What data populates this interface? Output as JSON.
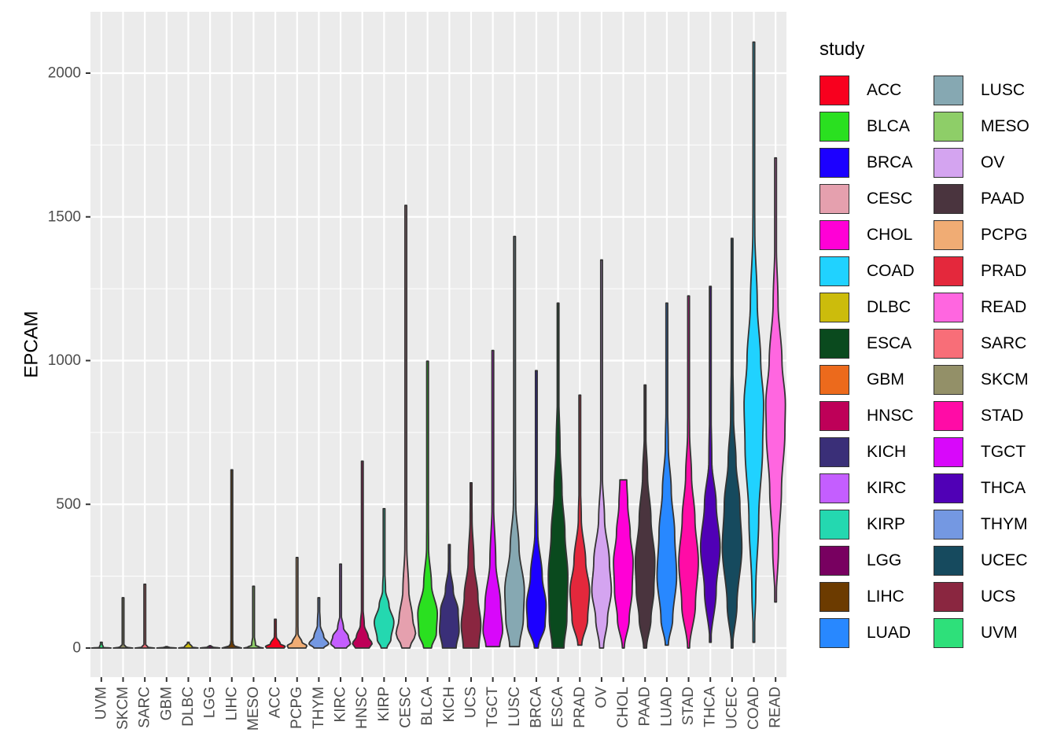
{
  "chart_data": {
    "type": "violin",
    "ylabel": "EPCAM",
    "xlabel": "",
    "ylim": [
      -100,
      2200
    ],
    "y_ticks": [
      0,
      500,
      1000,
      1500,
      2000
    ],
    "grid": true,
    "legend": {
      "title": "study",
      "position": "right",
      "columns": 2
    },
    "categories": [
      "UVM",
      "SKCM",
      "SARC",
      "GBM",
      "DLBC",
      "LGG",
      "LIHC",
      "MESO",
      "ACC",
      "PCPG",
      "THYM",
      "KIRC",
      "HNSC",
      "KIRP",
      "CESC",
      "BLCA",
      "KICH",
      "UCS",
      "TGCT",
      "LUSC",
      "BRCA",
      "ESCA",
      "PRAD",
      "OV",
      "CHOL",
      "PAAD",
      "LUAD",
      "STAD",
      "THCA",
      "UCEC",
      "COAD",
      "READ"
    ],
    "series": [
      {
        "name": "UVM",
        "min": 0,
        "max": 20,
        "profile": [
          [
            0,
            1
          ],
          [
            2,
            0.2
          ],
          [
            20,
            0.02
          ]
        ]
      },
      {
        "name": "SKCM",
        "min": 0,
        "max": 175,
        "profile": [
          [
            0,
            1
          ],
          [
            3,
            0.3
          ],
          [
            15,
            0.05
          ],
          [
            175,
            0.02
          ]
        ]
      },
      {
        "name": "SARC",
        "min": 0,
        "max": 222,
        "profile": [
          [
            0,
            1
          ],
          [
            3,
            0.3
          ],
          [
            15,
            0.05
          ],
          [
            222,
            0.02
          ]
        ]
      },
      {
        "name": "GBM",
        "min": 0,
        "max": 5,
        "profile": [
          [
            0,
            1
          ],
          [
            2,
            0.3
          ],
          [
            5,
            0.03
          ]
        ]
      },
      {
        "name": "DLBC",
        "min": 0,
        "max": 20,
        "profile": [
          [
            0,
            1
          ],
          [
            3,
            0.4
          ],
          [
            20,
            0.03
          ]
        ]
      },
      {
        "name": "LGG",
        "min": 0,
        "max": 8,
        "profile": [
          [
            0,
            1
          ],
          [
            3,
            0.3
          ],
          [
            8,
            0.03
          ]
        ]
      },
      {
        "name": "LIHC",
        "min": 0,
        "max": 620,
        "profile": [
          [
            0,
            1
          ],
          [
            3,
            0.5
          ],
          [
            10,
            0.15
          ],
          [
            40,
            0.05
          ],
          [
            200,
            0.03
          ],
          [
            620,
            0.02
          ]
        ]
      },
      {
        "name": "MESO",
        "min": 0,
        "max": 215,
        "profile": [
          [
            0,
            1
          ],
          [
            3,
            0.6
          ],
          [
            10,
            0.2
          ],
          [
            50,
            0.05
          ],
          [
            215,
            0.02
          ]
        ]
      },
      {
        "name": "ACC",
        "min": 0,
        "max": 100,
        "profile": [
          [
            0,
            0.9
          ],
          [
            5,
            1
          ],
          [
            15,
            0.5
          ],
          [
            40,
            0.1
          ],
          [
            100,
            0.02
          ]
        ]
      },
      {
        "name": "PCPG",
        "min": 0,
        "max": 315,
        "profile": [
          [
            0,
            0.9
          ],
          [
            8,
            1
          ],
          [
            20,
            0.5
          ],
          [
            50,
            0.1
          ],
          [
            150,
            0.03
          ],
          [
            315,
            0.02
          ]
        ]
      },
      {
        "name": "THYM",
        "min": 0,
        "max": 175,
        "profile": [
          [
            0,
            0.5
          ],
          [
            15,
            1
          ],
          [
            40,
            0.5
          ],
          [
            80,
            0.15
          ],
          [
            175,
            0.02
          ]
        ]
      },
      {
        "name": "KIRC",
        "min": 0,
        "max": 292,
        "profile": [
          [
            0,
            0.6
          ],
          [
            15,
            1
          ],
          [
            40,
            0.8
          ],
          [
            70,
            0.3
          ],
          [
            120,
            0.05
          ],
          [
            292,
            0.02
          ]
        ]
      },
      {
        "name": "HNSC",
        "min": 0,
        "max": 650,
        "profile": [
          [
            0,
            0.7
          ],
          [
            15,
            1
          ],
          [
            40,
            0.6
          ],
          [
            80,
            0.2
          ],
          [
            150,
            0.05
          ],
          [
            300,
            0.03
          ],
          [
            650,
            0.02
          ]
        ]
      },
      {
        "name": "KIRP",
        "min": 0,
        "max": 485,
        "profile": [
          [
            0,
            0.3
          ],
          [
            30,
            0.7
          ],
          [
            90,
            1
          ],
          [
            150,
            0.5
          ],
          [
            200,
            0.15
          ],
          [
            300,
            0.04
          ],
          [
            485,
            0.02
          ]
        ]
      },
      {
        "name": "CESC",
        "min": 0,
        "max": 1540,
        "profile": [
          [
            0,
            0.4
          ],
          [
            50,
            1
          ],
          [
            100,
            0.7
          ],
          [
            200,
            0.3
          ],
          [
            350,
            0.1
          ],
          [
            600,
            0.05
          ],
          [
            1000,
            0.03
          ],
          [
            1540,
            0.02
          ]
        ]
      },
      {
        "name": "BLCA",
        "min": 0,
        "max": 998,
        "profile": [
          [
            0,
            0.4
          ],
          [
            50,
            0.9
          ],
          [
            120,
            1
          ],
          [
            220,
            0.4
          ],
          [
            350,
            0.1
          ],
          [
            600,
            0.03
          ],
          [
            998,
            0.02
          ]
        ]
      },
      {
        "name": "KICH",
        "min": 0,
        "max": 360,
        "profile": [
          [
            0,
            0.7
          ],
          [
            60,
            1
          ],
          [
            130,
            0.9
          ],
          [
            200,
            0.4
          ],
          [
            280,
            0.1
          ],
          [
            360,
            0.02
          ]
        ]
      },
      {
        "name": "UCS",
        "min": 0,
        "max": 575,
        "profile": [
          [
            0,
            0.8
          ],
          [
            80,
            1
          ],
          [
            180,
            0.7
          ],
          [
            300,
            0.3
          ],
          [
            450,
            0.1
          ],
          [
            575,
            0.05
          ]
        ]
      },
      {
        "name": "TGCT",
        "min": 5,
        "max": 1035,
        "profile": [
          [
            5,
            0.7
          ],
          [
            60,
            1
          ],
          [
            150,
            0.8
          ],
          [
            300,
            0.3
          ],
          [
            500,
            0.08
          ],
          [
            700,
            0.03
          ],
          [
            1035,
            0.02
          ]
        ]
      },
      {
        "name": "LUSC",
        "min": 5,
        "max": 1432,
        "profile": [
          [
            5,
            0.5
          ],
          [
            100,
            0.9
          ],
          [
            200,
            1
          ],
          [
            350,
            0.45
          ],
          [
            500,
            0.12
          ],
          [
            800,
            0.04
          ],
          [
            1432,
            0.02
          ]
        ]
      },
      {
        "name": "BRCA",
        "min": 0,
        "max": 965,
        "profile": [
          [
            0,
            0.2
          ],
          [
            80,
            0.9
          ],
          [
            150,
            1
          ],
          [
            250,
            0.6
          ],
          [
            400,
            0.15
          ],
          [
            600,
            0.04
          ],
          [
            965,
            0.02
          ]
        ]
      },
      {
        "name": "ESCA",
        "min": 0,
        "max": 1200,
        "profile": [
          [
            0,
            0.6
          ],
          [
            100,
            0.9
          ],
          [
            250,
            1
          ],
          [
            400,
            0.7
          ],
          [
            550,
            0.4
          ],
          [
            700,
            0.2
          ],
          [
            900,
            0.06
          ],
          [
            1200,
            0.02
          ]
        ]
      },
      {
        "name": "PRAD",
        "min": 10,
        "max": 880,
        "profile": [
          [
            10,
            0.2
          ],
          [
            100,
            0.8
          ],
          [
            200,
            1
          ],
          [
            300,
            0.6
          ],
          [
            450,
            0.15
          ],
          [
            600,
            0.04
          ],
          [
            880,
            0.02
          ]
        ]
      },
      {
        "name": "OV",
        "min": 0,
        "max": 1350,
        "profile": [
          [
            0,
            0.2
          ],
          [
            100,
            0.6
          ],
          [
            200,
            1
          ],
          [
            300,
            0.8
          ],
          [
            450,
            0.3
          ],
          [
            600,
            0.08
          ],
          [
            900,
            0.03
          ],
          [
            1350,
            0.02
          ]
        ]
      },
      {
        "name": "CHOL",
        "min": 0,
        "max": 585,
        "profile": [
          [
            0,
            0.1
          ],
          [
            100,
            0.6
          ],
          [
            200,
            0.9
          ],
          [
            300,
            1
          ],
          [
            400,
            0.7
          ],
          [
            500,
            0.45
          ],
          [
            585,
            0.35
          ]
        ]
      },
      {
        "name": "PAAD",
        "min": 0,
        "max": 915,
        "profile": [
          [
            0,
            0.15
          ],
          [
            100,
            0.6
          ],
          [
            200,
            0.9
          ],
          [
            300,
            1
          ],
          [
            450,
            0.6
          ],
          [
            600,
            0.25
          ],
          [
            750,
            0.07
          ],
          [
            915,
            0.02
          ]
        ]
      },
      {
        "name": "LUAD",
        "min": 10,
        "max": 1200,
        "profile": [
          [
            10,
            0.15
          ],
          [
            100,
            0.6
          ],
          [
            250,
            1
          ],
          [
            400,
            0.8
          ],
          [
            550,
            0.45
          ],
          [
            700,
            0.15
          ],
          [
            900,
            0.04
          ],
          [
            1200,
            0.02
          ]
        ]
      },
      {
        "name": "STAD",
        "min": 0,
        "max": 1225,
        "profile": [
          [
            0,
            0.1
          ],
          [
            150,
            0.7
          ],
          [
            300,
            1
          ],
          [
            450,
            0.65
          ],
          [
            600,
            0.3
          ],
          [
            750,
            0.1
          ],
          [
            950,
            0.03
          ],
          [
            1225,
            0.02
          ]
        ]
      },
      {
        "name": "THCA",
        "min": 20,
        "max": 1258,
        "profile": [
          [
            20,
            0.05
          ],
          [
            200,
            0.6
          ],
          [
            350,
            1
          ],
          [
            500,
            0.6
          ],
          [
            650,
            0.15
          ],
          [
            900,
            0.03
          ],
          [
            1258,
            0.02
          ]
        ]
      },
      {
        "name": "UCEC",
        "min": 0,
        "max": 1425,
        "profile": [
          [
            0,
            0.05
          ],
          [
            150,
            0.5
          ],
          [
            350,
            1
          ],
          [
            500,
            0.8
          ],
          [
            650,
            0.4
          ],
          [
            800,
            0.15
          ],
          [
            1100,
            0.03
          ],
          [
            1425,
            0.02
          ]
        ]
      },
      {
        "name": "COAD",
        "min": 20,
        "max": 2108,
        "profile": [
          [
            20,
            0.03
          ],
          [
            200,
            0.2
          ],
          [
            450,
            0.5
          ],
          [
            700,
            0.9
          ],
          [
            850,
            1
          ],
          [
            1000,
            0.7
          ],
          [
            1200,
            0.35
          ],
          [
            1450,
            0.1
          ],
          [
            1700,
            0.03
          ],
          [
            2108,
            0.02
          ]
        ]
      },
      {
        "name": "READ",
        "min": 160,
        "max": 1705,
        "profile": [
          [
            160,
            0.05
          ],
          [
            350,
            0.3
          ],
          [
            550,
            0.6
          ],
          [
            750,
            0.95
          ],
          [
            850,
            1
          ],
          [
            1000,
            0.65
          ],
          [
            1200,
            0.25
          ],
          [
            1400,
            0.08
          ],
          [
            1705,
            0.02
          ]
        ]
      }
    ]
  },
  "legend_items": [
    {
      "label": "ACC",
      "color": "#F8001E"
    },
    {
      "label": "BLCA",
      "color": "#2AE020"
    },
    {
      "label": "BRCA",
      "color": "#1C00FF"
    },
    {
      "label": "CESC",
      "color": "#E5A0AE"
    },
    {
      "label": "CHOL",
      "color": "#FF00D6"
    },
    {
      "label": "COAD",
      "color": "#20D2FF"
    },
    {
      "label": "DLBC",
      "color": "#CCBC0C"
    },
    {
      "label": "ESCA",
      "color": "#0A4A1E"
    },
    {
      "label": "GBM",
      "color": "#EC6A1C"
    },
    {
      "label": "HNSC",
      "color": "#BE0058"
    },
    {
      "label": "KICH",
      "color": "#3A2F78"
    },
    {
      "label": "KIRC",
      "color": "#C45EFF"
    },
    {
      "label": "KIRP",
      "color": "#24D8B0"
    },
    {
      "label": "LGG",
      "color": "#780060"
    },
    {
      "label": "LIHC",
      "color": "#6C3B00"
    },
    {
      "label": "LUAD",
      "color": "#2888FF"
    },
    {
      "label": "LUSC",
      "color": "#86A8B2"
    },
    {
      "label": "MESO",
      "color": "#8ECE68"
    },
    {
      "label": "OV",
      "color": "#D4A4F0"
    },
    {
      "label": "PAAD",
      "color": "#4A343E"
    },
    {
      "label": "PCPG",
      "color": "#F0AC74"
    },
    {
      "label": "PRAD",
      "color": "#E4283C"
    },
    {
      "label": "READ",
      "color": "#FF66E0"
    },
    {
      "label": "SARC",
      "color": "#F86E78"
    },
    {
      "label": "SKCM",
      "color": "#939068"
    },
    {
      "label": "STAD",
      "color": "#FF0CA6"
    },
    {
      "label": "TGCT",
      "color": "#D808FA"
    },
    {
      "label": "THCA",
      "color": "#5000B6"
    },
    {
      "label": "THYM",
      "color": "#7498E2"
    },
    {
      "label": "UCEC",
      "color": "#164A5E"
    },
    {
      "label": "UCS",
      "color": "#8A2640"
    },
    {
      "label": "UVM",
      "color": "#2EE07A"
    }
  ]
}
